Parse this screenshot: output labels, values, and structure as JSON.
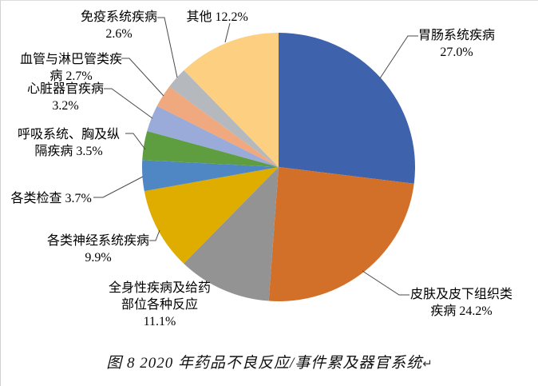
{
  "figure": {
    "caption": "图 8  2020 年药品不良反应/事件累及器官系统",
    "return_mark": "↵"
  },
  "chart_data": {
    "type": "pie",
    "title": "图 8  2020 年药品不良反应/事件累及器官系统",
    "start_angle_deg": 0,
    "direction": "clockwise",
    "legend_position": "none",
    "items": [
      {
        "label": "胃肠系统疾病",
        "value": 27.0,
        "pct_text": "27.0%",
        "label_lines": [
          "胃肠系统疾病",
          "27.0%"
        ],
        "color": "#3E63AC"
      },
      {
        "label": "皮肤及皮下组织类疾病",
        "value": 24.2,
        "pct_text": "24.2%",
        "label_lines": [
          "皮肤及皮下组织类",
          "疾病 24.2%"
        ],
        "color": "#D2702A"
      },
      {
        "label": "全身性疾病及给药部位各种反应",
        "value": 11.1,
        "pct_text": "11.1%",
        "label_lines": [
          "全身性疾病及给药",
          "部位各种反应",
          "11.1%"
        ],
        "color": "#939393"
      },
      {
        "label": "各类神经系统疾病",
        "value": 9.9,
        "pct_text": "9.9%",
        "label_lines": [
          "各类神经系统疾病",
          "9.9%"
        ],
        "color": "#DFAC00"
      },
      {
        "label": "各类检查",
        "value": 3.7,
        "pct_text": "3.7%",
        "label_lines": [
          "各类检查 3.7%"
        ],
        "color": "#4E87C4"
      },
      {
        "label": "呼吸系统、胸及纵隔疾病",
        "value": 3.5,
        "pct_text": "3.5%",
        "label_lines": [
          "呼吸系统、胸及纵",
          "隔疾病 3.5%"
        ],
        "color": "#5F9E40"
      },
      {
        "label": "心脏器官疾病",
        "value": 3.2,
        "pct_text": "3.2%",
        "label_lines": [
          "心脏器官疾病",
          "3.2%"
        ],
        "color": "#9AAAD9"
      },
      {
        "label": "血管与淋巴管类疾病",
        "value": 2.7,
        "pct_text": "2.7%",
        "label_lines": [
          "血管与淋巴管类疾",
          "病 2.7%"
        ],
        "color": "#F0A87E"
      },
      {
        "label": "免疫系统疾病",
        "value": 2.6,
        "pct_text": "2.6%",
        "label_lines": [
          "免疫系统疾病",
          "2.6%"
        ],
        "color": "#B5B8BC"
      },
      {
        "label": "其他",
        "value": 12.2,
        "pct_text": "12.2%",
        "label_lines": [
          "其他 12.2%"
        ],
        "color": "#FDCF81"
      }
    ]
  }
}
